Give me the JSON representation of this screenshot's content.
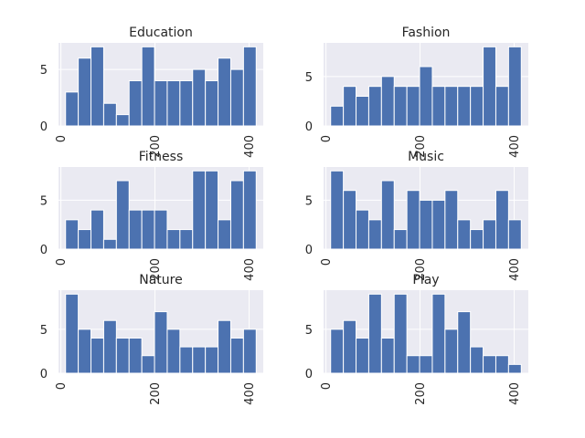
{
  "chart_data": [
    {
      "type": "bar",
      "title": "Education",
      "bins": [
        [
          10,
          37
        ],
        [
          37,
          64
        ],
        [
          64,
          91
        ],
        [
          91,
          118
        ],
        [
          118,
          145
        ],
        [
          145,
          172
        ],
        [
          172,
          199
        ],
        [
          199,
          226
        ],
        [
          226,
          253
        ],
        [
          253,
          280
        ],
        [
          280,
          307
        ],
        [
          307,
          334
        ],
        [
          334,
          361
        ],
        [
          361,
          388
        ],
        [
          388,
          415
        ]
      ],
      "values": [
        3,
        6,
        7,
        2,
        1,
        4,
        7,
        4,
        4,
        4,
        5,
        4,
        6,
        5,
        7
      ],
      "xlim": [
        -5,
        430
      ],
      "ylim": [
        0,
        7.35
      ],
      "xticks": [
        0,
        200,
        400
      ],
      "yticks": [
        0,
        5
      ]
    },
    {
      "type": "bar",
      "title": "Fashion",
      "bins": [
        [
          10,
          37
        ],
        [
          37,
          64
        ],
        [
          64,
          91
        ],
        [
          91,
          118
        ],
        [
          118,
          145
        ],
        [
          145,
          172
        ],
        [
          172,
          199
        ],
        [
          199,
          226
        ],
        [
          226,
          253
        ],
        [
          253,
          280
        ],
        [
          280,
          307
        ],
        [
          307,
          334
        ],
        [
          334,
          361
        ],
        [
          361,
          388
        ],
        [
          388,
          415
        ]
      ],
      "values": [
        2,
        4,
        3,
        4,
        5,
        4,
        4,
        6,
        4,
        4,
        4,
        4,
        8,
        4,
        8
      ],
      "xlim": [
        -5,
        430
      ],
      "ylim": [
        0,
        8.4
      ],
      "xticks": [
        0,
        200,
        400
      ],
      "yticks": [
        0,
        5
      ]
    },
    {
      "type": "bar",
      "title": "Fitness",
      "bins": [
        [
          10,
          37
        ],
        [
          37,
          64
        ],
        [
          64,
          91
        ],
        [
          91,
          118
        ],
        [
          118,
          145
        ],
        [
          145,
          172
        ],
        [
          172,
          199
        ],
        [
          199,
          226
        ],
        [
          226,
          253
        ],
        [
          253,
          280
        ],
        [
          280,
          307
        ],
        [
          307,
          334
        ],
        [
          334,
          361
        ],
        [
          361,
          388
        ],
        [
          388,
          415
        ]
      ],
      "values": [
        3,
        2,
        4,
        1,
        7,
        4,
        4,
        4,
        2,
        2,
        8,
        8,
        3,
        7,
        8
      ],
      "xlim": [
        -5,
        430
      ],
      "ylim": [
        0,
        8.4
      ],
      "xticks": [
        0,
        200,
        400
      ],
      "yticks": [
        0,
        5
      ]
    },
    {
      "type": "bar",
      "title": "Music",
      "bins": [
        [
          10,
          37
        ],
        [
          37,
          64
        ],
        [
          64,
          91
        ],
        [
          91,
          118
        ],
        [
          118,
          145
        ],
        [
          145,
          172
        ],
        [
          172,
          199
        ],
        [
          199,
          226
        ],
        [
          226,
          253
        ],
        [
          253,
          280
        ],
        [
          280,
          307
        ],
        [
          307,
          334
        ],
        [
          334,
          361
        ],
        [
          361,
          388
        ],
        [
          388,
          415
        ]
      ],
      "values": [
        8,
        6,
        4,
        3,
        7,
        2,
        6,
        5,
        5,
        6,
        3,
        2,
        3,
        6,
        3
      ],
      "xlim": [
        -5,
        430
      ],
      "ylim": [
        0,
        8.4
      ],
      "xticks": [
        0,
        200,
        400
      ],
      "yticks": [
        0,
        5
      ]
    },
    {
      "type": "bar",
      "title": "Nature",
      "bins": [
        [
          10,
          37
        ],
        [
          37,
          64
        ],
        [
          64,
          91
        ],
        [
          91,
          118
        ],
        [
          118,
          145
        ],
        [
          145,
          172
        ],
        [
          172,
          199
        ],
        [
          199,
          226
        ],
        [
          226,
          253
        ],
        [
          253,
          280
        ],
        [
          280,
          307
        ],
        [
          307,
          334
        ],
        [
          334,
          361
        ],
        [
          361,
          388
        ],
        [
          388,
          415
        ]
      ],
      "values": [
        9,
        5,
        4,
        6,
        4,
        4,
        2,
        7,
        5,
        3,
        3,
        3,
        6,
        4,
        5
      ],
      "xlim": [
        -5,
        430
      ],
      "ylim": [
        0,
        9.45
      ],
      "xticks": [
        0,
        200,
        400
      ],
      "yticks": [
        0,
        5
      ]
    },
    {
      "type": "bar",
      "title": "Play",
      "bins": [
        [
          10,
          37
        ],
        [
          37,
          64
        ],
        [
          64,
          91
        ],
        [
          91,
          118
        ],
        [
          118,
          145
        ],
        [
          145,
          172
        ],
        [
          172,
          199
        ],
        [
          199,
          226
        ],
        [
          226,
          253
        ],
        [
          253,
          280
        ],
        [
          280,
          307
        ],
        [
          307,
          334
        ],
        [
          334,
          361
        ],
        [
          361,
          388
        ],
        [
          388,
          415
        ]
      ],
      "values": [
        5,
        6,
        4,
        9,
        4,
        9,
        2,
        2,
        9,
        5,
        7,
        3,
        2,
        2,
        1
      ],
      "xlim": [
        -5,
        430
      ],
      "ylim": [
        0,
        9.45
      ],
      "xticks": [
        0,
        200,
        400
      ],
      "yticks": [
        0,
        5
      ]
    }
  ],
  "colors": {
    "panel_background": "#eaeaf2",
    "bar": "#4c72b0",
    "grid": "#ffffff",
    "text": "#262626"
  }
}
